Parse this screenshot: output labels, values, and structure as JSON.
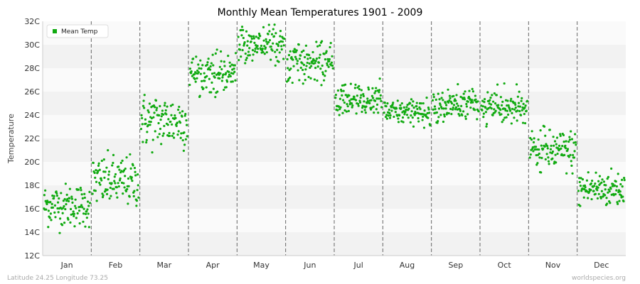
{
  "chart_data": {
    "type": "scatter",
    "title": "Monthly Mean Temperatures 1901 - 2009",
    "ylabel": "Temperature",
    "xlabel": "",
    "ylim": [
      12,
      32
    ],
    "y_ticks": [
      "12C",
      "14C",
      "16C",
      "18C",
      "20C",
      "22C",
      "24C",
      "26C",
      "28C",
      "30C",
      "32C"
    ],
    "categories": [
      "Jan",
      "Feb",
      "Mar",
      "Apr",
      "May",
      "Jun",
      "Jul",
      "Aug",
      "Sep",
      "Oct",
      "Nov",
      "Dec"
    ],
    "grid": "alternating horizontal bands; dashed vertical month separators",
    "legend": {
      "position": "top-left",
      "label": "Mean Temp"
    },
    "series": [
      {
        "name": "Mean Temp",
        "color": "#11aa11",
        "years": "1901-2009",
        "monthly_center": [
          16.3,
          18.3,
          23.5,
          27.6,
          30.1,
          28.4,
          25.3,
          24.2,
          24.9,
          24.6,
          20.9,
          17.7
        ],
        "monthly_min": [
          13.9,
          15.4,
          19.8,
          25.4,
          28.2,
          26.5,
          23.5,
          22.9,
          23.3,
          22.8,
          18.4,
          15.8
        ],
        "monthly_max": [
          18.6,
          21.0,
          25.9,
          29.6,
          31.8,
          30.6,
          27.2,
          25.7,
          26.9,
          26.7,
          23.1,
          20.0
        ]
      }
    ]
  },
  "footer": {
    "location": "Latitude 24.25 Longitude 73.25",
    "source": "worldspecies.org"
  },
  "colors": {
    "band_dark": "#f2f2f2",
    "band_light": "#fafafa",
    "separator": "#666666",
    "point": "#11aa11"
  }
}
